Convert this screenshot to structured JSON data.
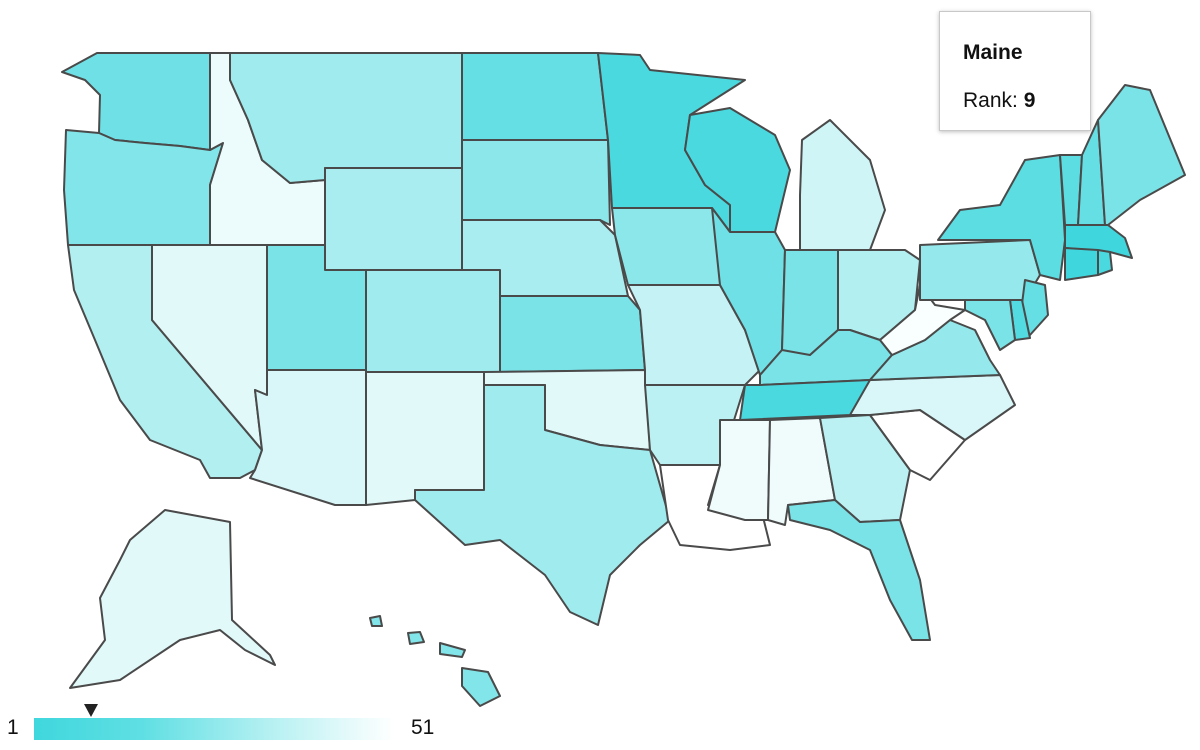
{
  "tooltip": {
    "state": "Maine",
    "rank_label": "Rank:",
    "rank": "9"
  },
  "legend": {
    "min": "1",
    "max": "51",
    "gradient": [
      "#3fd7dd",
      "#ffffff"
    ],
    "marker_rank": 9
  },
  "states": [
    {
      "name": "Washington",
      "shade": 0.25
    },
    {
      "name": "Oregon",
      "shade": 0.35
    },
    {
      "name": "California",
      "shade": 0.6
    },
    {
      "name": "Nevada",
      "shade": 0.85
    },
    {
      "name": "Idaho",
      "shade": 0.9
    },
    {
      "name": "Montana",
      "shade": 0.5
    },
    {
      "name": "Wyoming",
      "shade": 0.55
    },
    {
      "name": "Utah",
      "shade": 0.3
    },
    {
      "name": "Colorado",
      "shade": 0.5
    },
    {
      "name": "Arizona",
      "shade": 0.8
    },
    {
      "name": "New Mexico",
      "shade": 0.85
    },
    {
      "name": "North Dakota",
      "shade": 0.2
    },
    {
      "name": "South Dakota",
      "shade": 0.4
    },
    {
      "name": "Nebraska",
      "shade": 0.55
    },
    {
      "name": "Kansas",
      "shade": 0.3
    },
    {
      "name": "Oklahoma",
      "shade": 0.85
    },
    {
      "name": "Texas",
      "shade": 0.5
    },
    {
      "name": "Minnesota",
      "shade": 0.05
    },
    {
      "name": "Iowa",
      "shade": 0.4
    },
    {
      "name": "Missouri",
      "shade": 0.7
    },
    {
      "name": "Arkansas",
      "shade": 0.65
    },
    {
      "name": "Louisiana",
      "shade": 1.0
    },
    {
      "name": "Wisconsin",
      "shade": 0.05
    },
    {
      "name": "Illinois",
      "shade": 0.25
    },
    {
      "name": "Michigan",
      "shade": 0.75
    },
    {
      "name": "Indiana",
      "shade": 0.3
    },
    {
      "name": "Ohio",
      "shade": 0.6
    },
    {
      "name": "Kentucky",
      "shade": 0.3
    },
    {
      "name": "Tennessee",
      "shade": 0.05
    },
    {
      "name": "Mississippi",
      "shade": 0.92
    },
    {
      "name": "Alabama",
      "shade": 0.92
    },
    {
      "name": "Georgia",
      "shade": 0.65
    },
    {
      "name": "Florida",
      "shade": 0.3
    },
    {
      "name": "South Carolina",
      "shade": 1.0
    },
    {
      "name": "North Carolina",
      "shade": 0.8
    },
    {
      "name": "Virginia",
      "shade": 0.45
    },
    {
      "name": "West Virginia",
      "shade": 0.97
    },
    {
      "name": "Pennsylvania",
      "shade": 0.45
    },
    {
      "name": "New York",
      "shade": 0.15
    },
    {
      "name": "Vermont",
      "shade": 0.15
    },
    {
      "name": "New Hampshire",
      "shade": 0.2
    },
    {
      "name": "Maine",
      "shade": 0.3
    },
    {
      "name": "Massachusetts",
      "shade": 0.0
    },
    {
      "name": "Connecticut",
      "shade": 0.0
    },
    {
      "name": "Rhode Island",
      "shade": 0.05
    },
    {
      "name": "New Jersey",
      "shade": 0.2
    },
    {
      "name": "Delaware",
      "shade": 0.1
    },
    {
      "name": "Maryland",
      "shade": 0.3
    },
    {
      "name": "Alaska",
      "shade": 0.85
    },
    {
      "name": "Hawaii",
      "shade": 0.35
    }
  ]
}
